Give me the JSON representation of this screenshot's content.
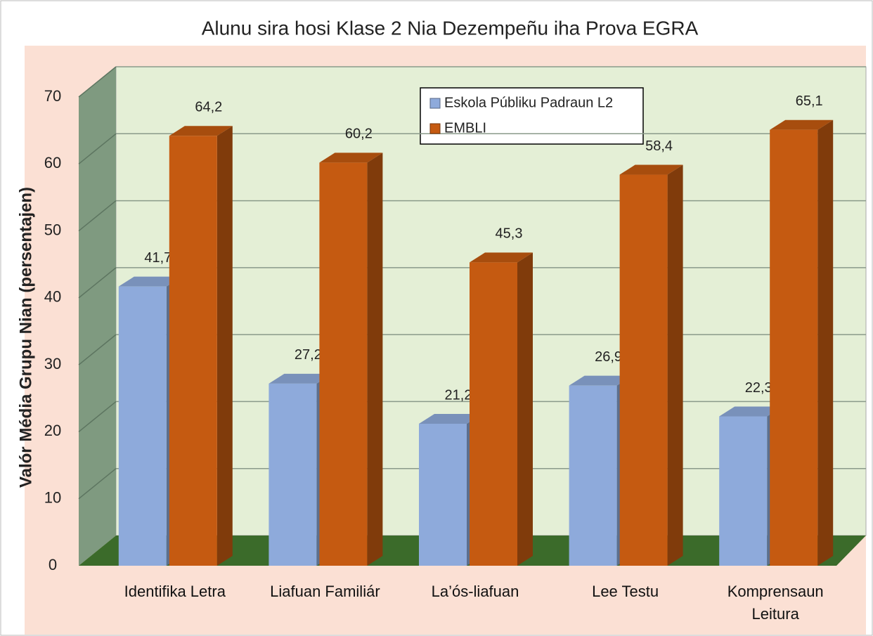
{
  "chart_data": {
    "type": "bar3d",
    "title": "Alunu sira hosi Klase 2 Nia Dezempeñu iha Prova EGRA",
    "y_label": "Valór Média Grupu Nian (persentajen)",
    "categories": [
      "Identifika Letra",
      "Liafuan Familiár",
      "La’ós-liafuan",
      "Lee Testu",
      "Komprensaun Leitura"
    ],
    "series": [
      {
        "name": "Eskola Públiku Padraun L2",
        "color": "#8eaadb",
        "values": [
          41.7,
          27.2,
          21.2,
          26.9,
          22.3
        ],
        "value_labels": [
          "41,7",
          "27,2",
          "21,2",
          "26,9",
          "22,3"
        ]
      },
      {
        "name": "EMBLI",
        "color": "#c55a11",
        "values": [
          64.2,
          60.2,
          45.3,
          58.4,
          65.1
        ],
        "value_labels": [
          "64,2",
          "60,2",
          "45,3",
          "58,4",
          "65,1"
        ]
      }
    ],
    "ylim": [
      0,
      70
    ],
    "yticks": [
      0,
      10,
      20,
      30,
      40,
      50,
      60,
      70
    ],
    "grid": true,
    "legend": "top"
  }
}
